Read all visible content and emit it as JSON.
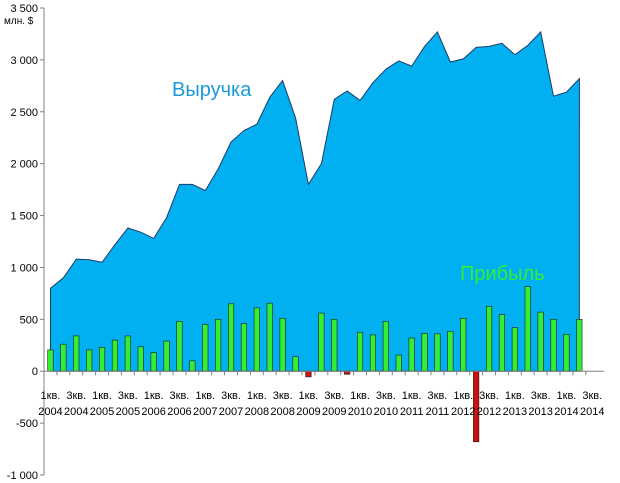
{
  "chart_data": {
    "type": "area",
    "unit_label": "млн. $",
    "ylim": [
      -1000,
      3500
    ],
    "y_ticks": [
      3500,
      3000,
      2500,
      2000,
      1500,
      1000,
      500,
      0,
      -500,
      -1000
    ],
    "y_tick_labels": [
      "3 500",
      "3 000",
      "2 500",
      "2 000",
      "1 500",
      "1 000",
      "500",
      "0",
      "-500",
      "-1 000"
    ],
    "grid": false,
    "colors": {
      "revenue": "#00b0f0",
      "profit_positive": "#33ee33",
      "profit_negative": "#cc1111",
      "revenue_label": "#1b9bd6",
      "profit_label": "#33ee33"
    },
    "x_tick_labels": [
      {
        "line1": "1кв.",
        "line2": "2004"
      },
      {
        "line1": "3кв.",
        "line2": "2004"
      },
      {
        "line1": "1кв.",
        "line2": "2005"
      },
      {
        "line1": "3кв.",
        "line2": "2005"
      },
      {
        "line1": "1кв.",
        "line2": "2006"
      },
      {
        "line1": "3кв.",
        "line2": "2006"
      },
      {
        "line1": "1кв.",
        "line2": "2007"
      },
      {
        "line1": "3кв.",
        "line2": "2007"
      },
      {
        "line1": "1кв.",
        "line2": "2008"
      },
      {
        "line1": "3кв.",
        "line2": "2008"
      },
      {
        "line1": "1кв.",
        "line2": "2009"
      },
      {
        "line1": "3кв.",
        "line2": "2009"
      },
      {
        "line1": "1кв.",
        "line2": "2010"
      },
      {
        "line1": "3кв.",
        "line2": "2010"
      },
      {
        "line1": "1кв.",
        "line2": "2011"
      },
      {
        "line1": "3кв.",
        "line2": "2011"
      },
      {
        "line1": "1кв.",
        "line2": "2012"
      },
      {
        "line1": "3кв.",
        "line2": "2012"
      },
      {
        "line1": "1кв.",
        "line2": "2013"
      },
      {
        "line1": "3кв.",
        "line2": "2013"
      },
      {
        "line1": "1кв.",
        "line2": "2014"
      },
      {
        "line1": "3кв.",
        "line2": "2014"
      }
    ],
    "series": [
      {
        "name": "Выручка",
        "type": "area",
        "values": [
          800,
          900,
          1080,
          1075,
          1050,
          1220,
          1380,
          1340,
          1280,
          1480,
          1800,
          1800,
          1740,
          1950,
          2210,
          2320,
          2380,
          2640,
          2800,
          2440,
          1800,
          2000,
          2620,
          2700,
          2610,
          2780,
          2910,
          2990,
          2940,
          3130,
          3270,
          2980,
          3010,
          3120,
          3130,
          3160,
          3050,
          3140,
          3270,
          2650,
          2690,
          2820
        ]
      },
      {
        "name": "Прибыль",
        "type": "bar",
        "values": [
          205,
          260,
          340,
          205,
          230,
          300,
          340,
          235,
          180,
          290,
          480,
          100,
          450,
          500,
          650,
          460,
          610,
          655,
          510,
          140,
          -55,
          560,
          500,
          -30,
          375,
          350,
          480,
          155,
          320,
          365,
          360,
          385,
          510,
          -680,
          625,
          545,
          420,
          815,
          570,
          500,
          355,
          500
        ]
      }
    ]
  }
}
